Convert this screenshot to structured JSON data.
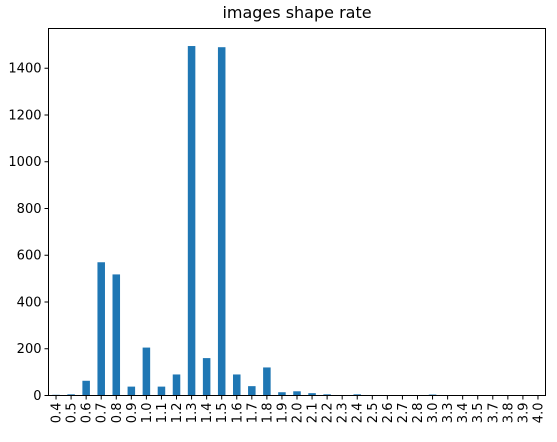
{
  "chart_data": {
    "type": "bar",
    "title": "images shape rate",
    "xlabel": "",
    "ylabel": "",
    "categories": [
      "0.4",
      "0.5",
      "0.6",
      "0.7",
      "0.8",
      "0.9",
      "1.0",
      "1.1",
      "1.2",
      "1.3",
      "1.4",
      "1.5",
      "1.6",
      "1.7",
      "1.8",
      "1.9",
      "2.0",
      "2.1",
      "2.2",
      "2.3",
      "2.4",
      "2.5",
      "2.6",
      "2.7",
      "2.8",
      "3.0",
      "3.3",
      "3.4",
      "3.5",
      "3.7",
      "3.8",
      "3.9",
      "4.0"
    ],
    "values": [
      3,
      5,
      63,
      570,
      518,
      38,
      205,
      38,
      90,
      1495,
      160,
      1490,
      90,
      40,
      120,
      14,
      18,
      10,
      5,
      1,
      5,
      1,
      1,
      1,
      1,
      4,
      1,
      1,
      1,
      1,
      1,
      1,
      1
    ],
    "ylim": [
      0,
      1570
    ],
    "yticks": [
      0,
      200,
      400,
      600,
      800,
      1000,
      1200,
      1400
    ],
    "grid": false,
    "legend": "none",
    "bar_color": "#1f77b4"
  }
}
